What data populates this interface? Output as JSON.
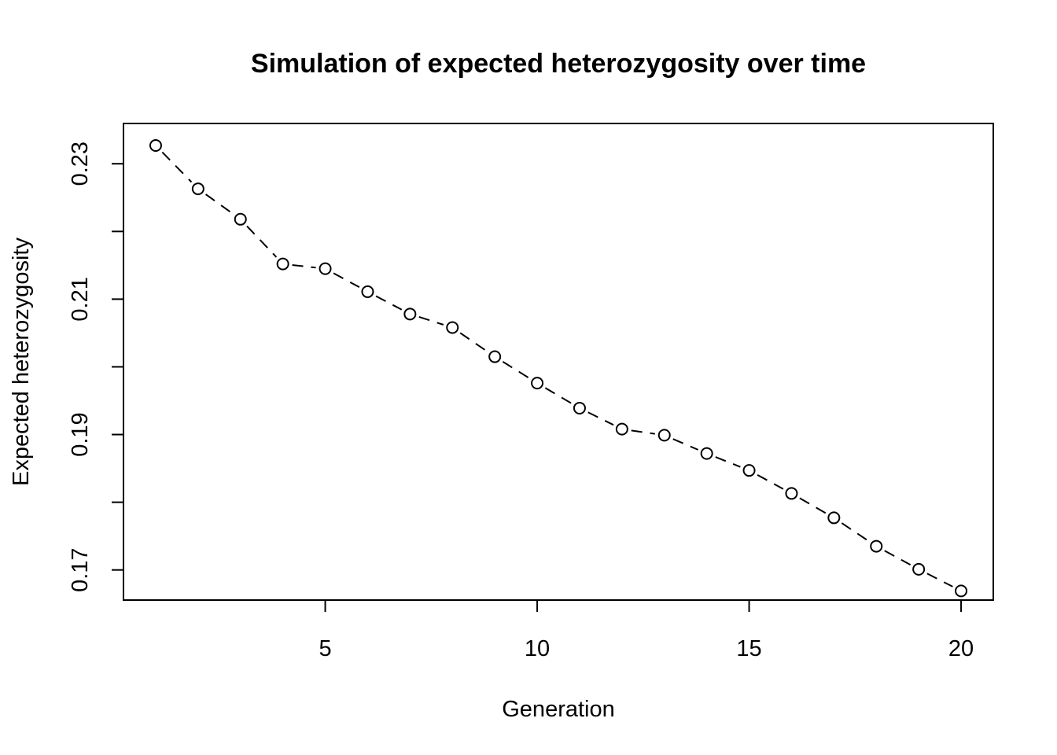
{
  "chart_data": {
    "type": "line",
    "title": "Simulation of expected heterozygosity over time",
    "xlabel": "Generation",
    "ylabel": "Expected heterozygosity",
    "line_style": "dashed",
    "marker": "open-circle",
    "xlim": [
      0.24,
      20.76
    ],
    "ylim": [
      0.16555,
      0.23595
    ],
    "x_ticks": [
      5,
      10,
      15,
      20
    ],
    "x_tick_labels": [
      "5",
      "10",
      "15",
      "20"
    ],
    "y_ticks": [
      0.17,
      0.18,
      0.19,
      0.2,
      0.21,
      0.22,
      0.23
    ],
    "y_tick_labels": [
      "0.17",
      "",
      "0.19",
      "",
      "0.21",
      "",
      "0.23"
    ],
    "grid": false,
    "series": [
      {
        "x": [
          1,
          2,
          3,
          4,
          5,
          6,
          7,
          8,
          9,
          10,
          11,
          12,
          13,
          14,
          15,
          16,
          17,
          18,
          19,
          20
        ],
        "values": [
          0.2327,
          0.2263,
          0.2218,
          0.2152,
          0.2145,
          0.2111,
          0.2078,
          0.2058,
          0.2015,
          0.1976,
          0.1939,
          0.1908,
          0.1899,
          0.1872,
          0.1847,
          0.1813,
          0.1777,
          0.1735,
          0.1701,
          0.1669
        ]
      }
    ]
  }
}
